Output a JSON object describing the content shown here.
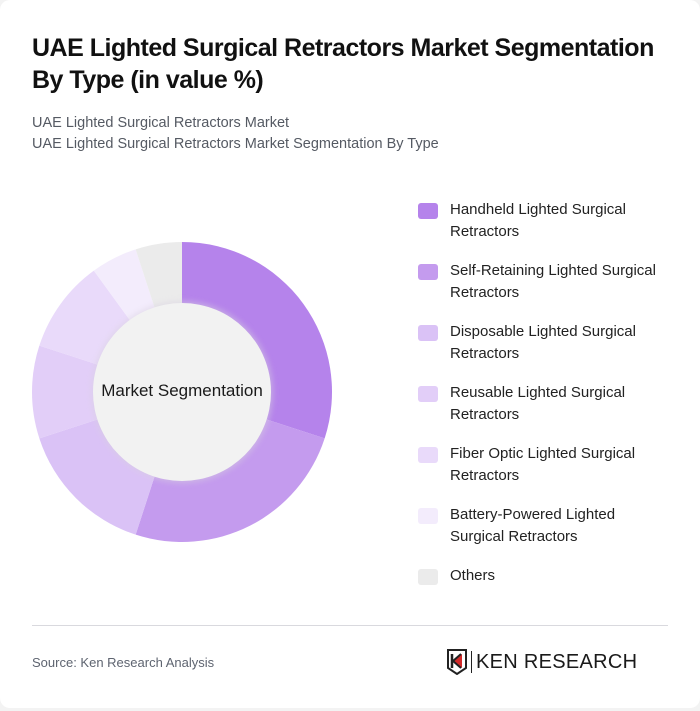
{
  "header": {
    "title": "UAE Lighted Surgical Retractors Market Segmentation By Type (in value %)",
    "subtitle_lines": [
      "UAE Lighted Surgical Retractors Market",
      "UAE Lighted Surgical Retractors Market Segmentation By Type"
    ]
  },
  "chart_data": {
    "type": "pie",
    "variant": "donut",
    "title": "UAE Lighted Surgical Retractors Market Segmentation By Type (in value %)",
    "center_label": "Market Segmentation",
    "categories": [
      "Handheld Lighted Surgical Retractors",
      "Self-Retaining Lighted Surgical Retractors",
      "Disposable Lighted Surgical Retractors",
      "Reusable Lighted Surgical Retractors",
      "Fiber Optic Lighted Surgical Retractors",
      "Battery-Powered Lighted Surgical Retractors",
      "Others"
    ],
    "values": [
      30,
      25,
      15,
      10,
      10,
      5,
      5
    ],
    "colors": [
      "#B583EB",
      "#C49BEE",
      "#DAC2F6",
      "#E2CEF8",
      "#E9DAFA",
      "#F3ECFC",
      "#EBEBEB"
    ],
    "unit": "%",
    "legend_position": "right",
    "start_angle": "top, clockwise"
  },
  "legend": {
    "items": [
      {
        "label": "Handheld Lighted Surgical Retractors",
        "color": "#B583EB"
      },
      {
        "label": "Self-Retaining Lighted Surgical Retractors",
        "color": "#C49BEE"
      },
      {
        "label": "Disposable Lighted Surgical Retractors",
        "color": "#DAC2F6"
      },
      {
        "label": "Reusable Lighted Surgical Retractors",
        "color": "#E2CEF8"
      },
      {
        "label": "Fiber Optic Lighted Surgical Retractors",
        "color": "#E9DAFA"
      },
      {
        "label": "Battery-Powered Lighted Surgical Retractors",
        "color": "#F3ECFC"
      },
      {
        "label": "Others",
        "color": "#EBEBEB"
      }
    ]
  },
  "footer": {
    "source": "Source: Ken Research Analysis",
    "logo_text": "KEN RESEARCH"
  }
}
